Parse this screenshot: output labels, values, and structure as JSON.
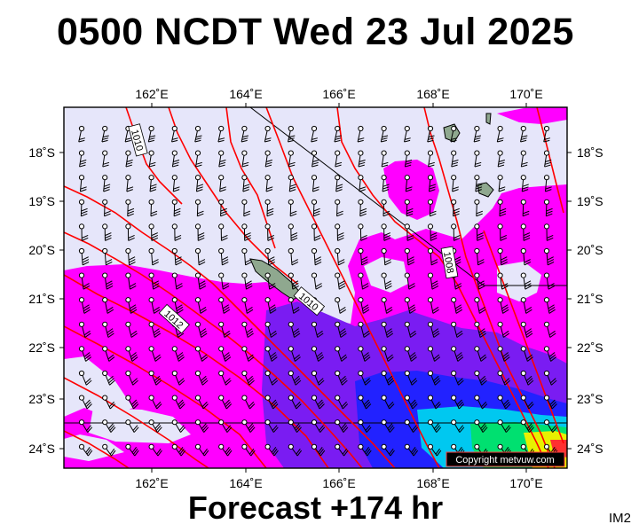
{
  "header": {
    "title": "0500 NCDT Wed 23 Jul 2025"
  },
  "footer": {
    "forecast_label": "Forecast +174 hr",
    "image_tag": "IM2"
  },
  "map": {
    "lon_labels": [
      "162˚E",
      "164˚E",
      "166˚E",
      "168˚E",
      "170˚E"
    ],
    "lat_labels": [
      "18˚S",
      "19˚S",
      "20˚S",
      "21˚S",
      "22˚S",
      "23˚S",
      "24˚S"
    ],
    "isobar_labels": [
      "1010",
      "1012",
      "1010",
      "1008"
    ],
    "copyright": "Copyright metvuw.com",
    "colors": {
      "background": "#e6e6fa",
      "rain_light": "#ff00ff",
      "rain_medium": "#7a1cf2",
      "rain_heavy": "#2020ff",
      "rain_very_heavy": "#00d0ff",
      "rain_extreme": "#00e070",
      "isobar": "#ff0000",
      "land": "#8fa88f"
    }
  }
}
